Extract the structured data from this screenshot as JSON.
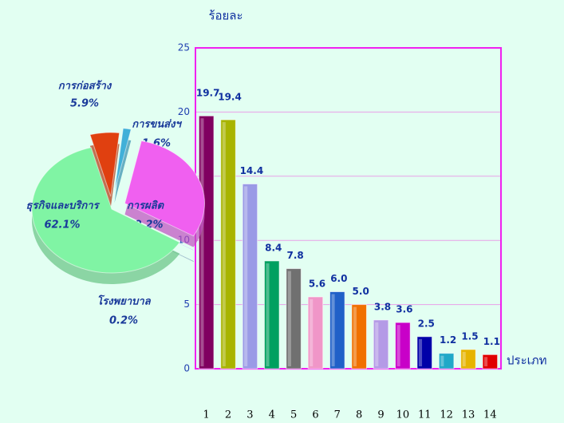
{
  "chart_data": [
    {
      "type": "bar",
      "y_label": "ร้อยละ",
      "x_label": "ประเภท",
      "categories": [
        "1",
        "2",
        "3",
        "4",
        "5",
        "6",
        "7",
        "8",
        "9",
        "10",
        "11",
        "12",
        "13",
        "14"
      ],
      "values": [
        19.7,
        19.4,
        14.4,
        8.4,
        7.8,
        5.6,
        6.0,
        5.0,
        3.8,
        3.6,
        2.5,
        1.2,
        1.5,
        1.1
      ],
      "value_labels": [
        "19.7",
        "19.4",
        "14.4",
        "8.4",
        "7.8",
        "5.6",
        "6.0",
        "5.0",
        "3.8",
        "3.6",
        "2.5",
        "1.2",
        "1.5",
        "1.1"
      ],
      "colors": [
        "#800060",
        "#a8b400",
        "#9a9ae6",
        "#00a060",
        "#707070",
        "#f096c8",
        "#2060c8",
        "#f07000",
        "#b49ae6",
        "#c800c8",
        "#0000a8",
        "#20a8c8",
        "#e6b400",
        "#e00000"
      ],
      "ylim": [
        0,
        25
      ],
      "yticks": [
        0,
        5,
        10,
        15,
        20,
        25
      ],
      "grid": true
    },
    {
      "type": "pie",
      "categories": [
        "การก่อสร้าง",
        "การขนส่งฯ",
        "การผลิต",
        "โรงพยาบาล",
        "ธุรกิจและบริการ"
      ],
      "values": [
        5.9,
        1.6,
        30.2,
        0.2,
        62.1
      ],
      "value_labels": [
        "5.9%",
        "1.6%",
        "30.2%",
        "0.2%",
        "62.1%"
      ],
      "colors": [
        "#e04010",
        "#40b0d8",
        "#f060f0",
        "#a0c4e8",
        "#80f4a4"
      ]
    }
  ]
}
